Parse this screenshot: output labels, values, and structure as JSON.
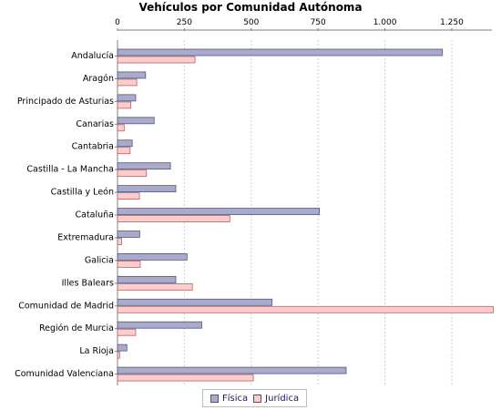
{
  "chart_data": {
    "type": "bar",
    "orientation": "horizontal",
    "title": "Vehículos por Comunidad Autónoma",
    "xlabel": "",
    "ylabel": "",
    "xlim": [
      0,
      1400
    ],
    "xticks": [
      0,
      250,
      500,
      750,
      1000,
      1250
    ],
    "xtick_labels": [
      "0",
      "250",
      "500",
      "750",
      "1.000",
      "1.250"
    ],
    "axis_position": "top",
    "grid": "vertical dashed",
    "legend_position": "bottom",
    "categories": [
      "Andalucía",
      "Aragón",
      "Principado de Asturias",
      "Canarias",
      "Cantabria",
      "Castilla - La Mancha",
      "Castilla y León",
      "Cataluña",
      "Extremadura",
      "Galicia",
      "Illes Balears",
      "Comunidad de Madrid",
      "Región de Murcia",
      "La Rioja",
      "Comunidad Valenciana"
    ],
    "series": [
      {
        "name": "Física",
        "color": "#aaaacc",
        "values": [
          1215,
          105,
          68,
          137,
          55,
          198,
          218,
          755,
          83,
          260,
          218,
          578,
          315,
          35,
          855
        ]
      },
      {
        "name": "Jurídica",
        "color": "#ffcccc",
        "values": [
          290,
          72,
          50,
          25,
          47,
          108,
          82,
          420,
          15,
          85,
          280,
          1405,
          68,
          8,
          508
        ]
      }
    ]
  }
}
